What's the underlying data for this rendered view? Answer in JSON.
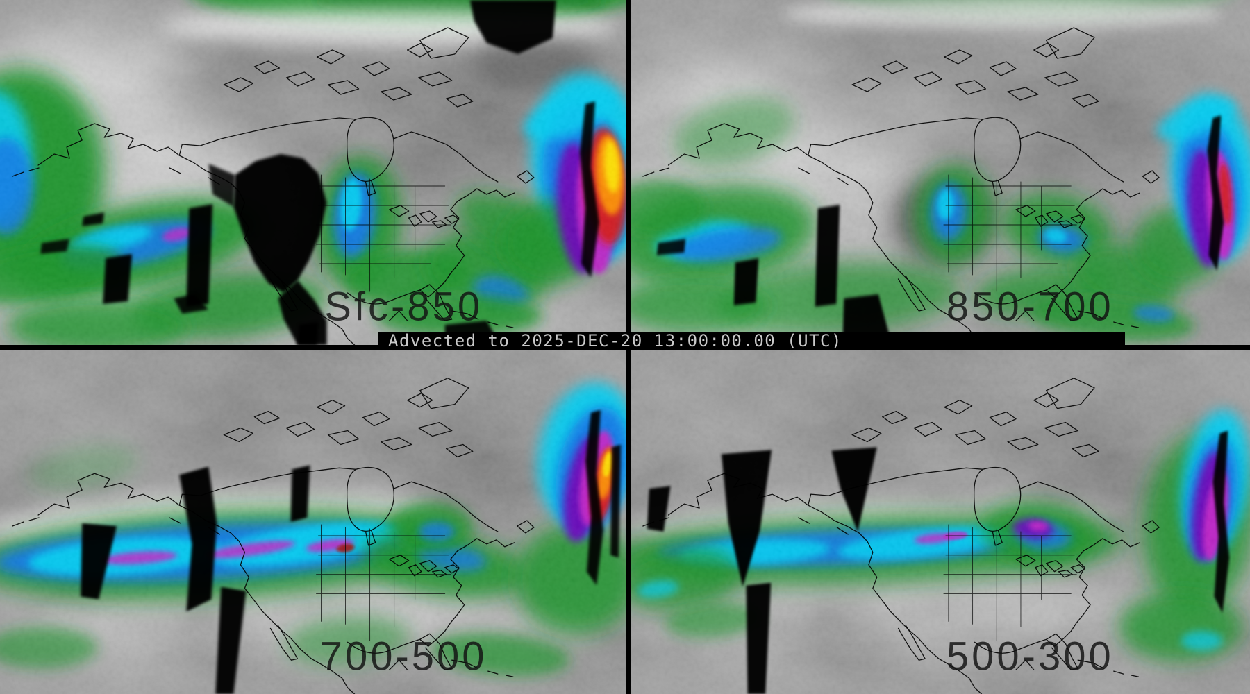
{
  "banner": {
    "text": "Advected to 2025-DEC-20 13:00:00.00 (UTC)"
  },
  "panels": [
    {
      "id": "sfc-850",
      "label": "Sfc-850"
    },
    {
      "id": "850-700",
      "label": "850-700"
    },
    {
      "id": "700-500",
      "label": "700-500"
    },
    {
      "id": "500-300",
      "label": "500-300"
    }
  ],
  "colorscale": {
    "dry_gray": "#8c8c8c",
    "moist_white": "#f2f2f2",
    "green": "#169327",
    "dark_green": "#0c7c1e",
    "blue": "#0a77e8",
    "cyan": "#00cdf2",
    "purple": "#6a00b8",
    "magenta": "#c222c8",
    "red": "#d41313",
    "dark_red": "#a00808",
    "orange": "#ff9100",
    "yellow": "#ffe400",
    "data_gap_black": "#000000",
    "coastline_black": "#000000"
  }
}
